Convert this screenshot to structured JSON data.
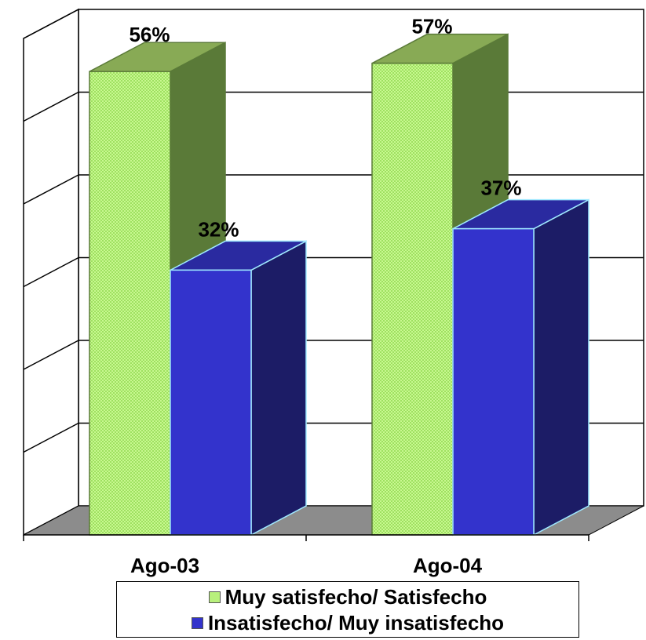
{
  "chart_data": {
    "type": "bar",
    "categories": [
      "Ago-03",
      "Ago-04"
    ],
    "series": [
      {
        "name": "Muy satisfecho/ Satisfecho",
        "values": [
          56,
          57
        ],
        "labels": [
          "56%",
          "57%"
        ],
        "color": "#b8f07c",
        "side_color": "#5a7a38",
        "top_color": "#88aa55",
        "pattern": "checker"
      },
      {
        "name": "Insatisfecho/ Muy insatisfecho",
        "values": [
          32,
          37
        ],
        "labels": [
          "32%",
          "37%"
        ],
        "color": "#3333cc",
        "side_color": "#1c1c66",
        "top_color": "#2a2aa0",
        "pattern": "solid"
      }
    ],
    "ylim": [
      0,
      60
    ],
    "grid": true,
    "legend_position": "bottom",
    "three_d": true
  }
}
